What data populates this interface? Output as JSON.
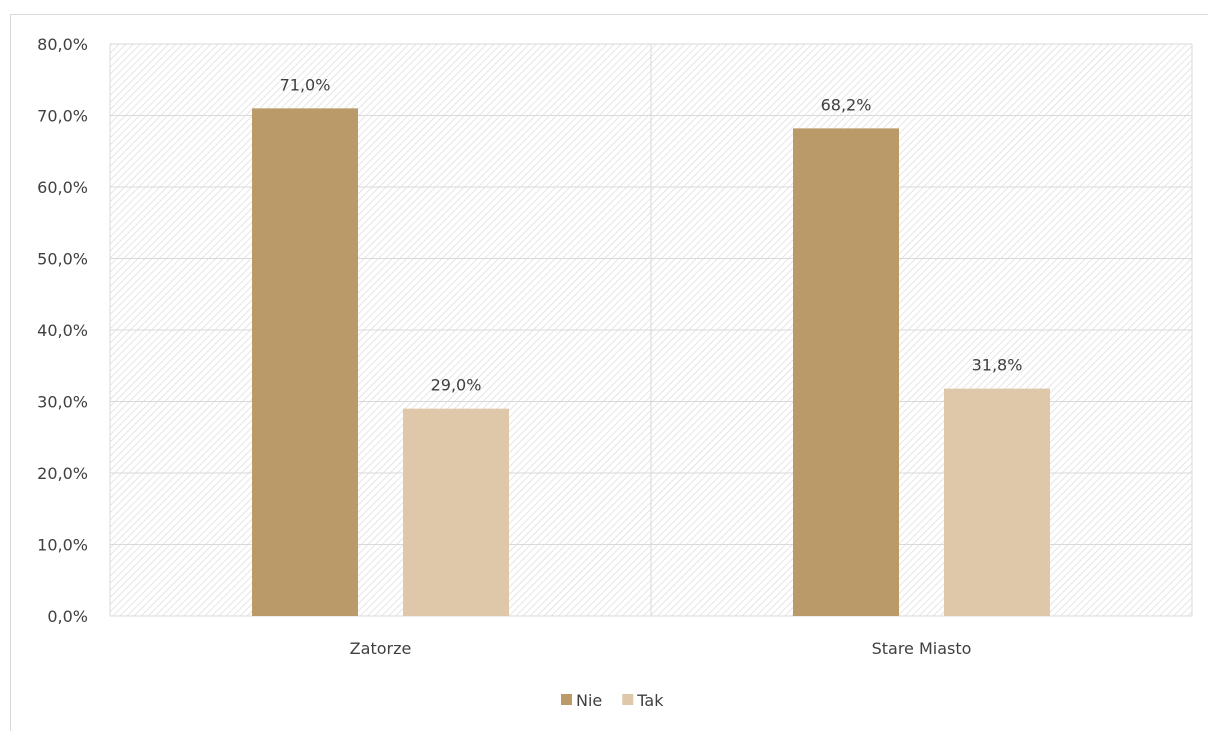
{
  "chart_data": {
    "type": "bar",
    "categories": [
      "Zatorze",
      "Stare Miasto"
    ],
    "series": [
      {
        "name": "Nie",
        "color": "#bb9a69",
        "values": [
          71.0,
          68.2
        ],
        "labels": [
          "71,0%",
          "68,2%"
        ]
      },
      {
        "name": "Tak",
        "color": "#dfc8a9",
        "values": [
          29.0,
          31.8
        ],
        "labels": [
          "29,0%",
          "31,8%"
        ]
      }
    ],
    "ylim": [
      0,
      80
    ],
    "yticks": [
      0,
      10,
      20,
      30,
      40,
      50,
      60,
      70,
      80
    ],
    "ytick_labels": [
      "0,0%",
      "10,0%",
      "20,0%",
      "30,0%",
      "40,0%",
      "50,0%",
      "60,0%",
      "70,0%",
      "80,0%"
    ],
    "grid": true,
    "legend_position": "bottom",
    "plot_background": "hatched"
  }
}
